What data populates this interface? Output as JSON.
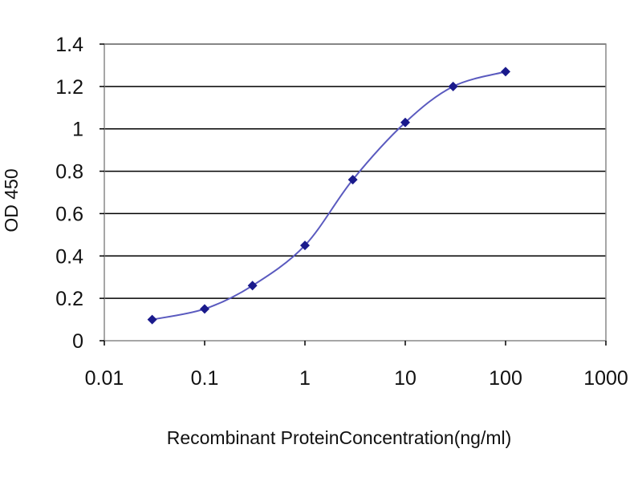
{
  "chart_data": {
    "type": "scatter",
    "xlabel": "Recombinant ProteinConcentration(ng/ml)",
    "ylabel": "OD 450",
    "x_scale": "log",
    "xlim": [
      0.01,
      1000
    ],
    "ylim": [
      0,
      1.4
    ],
    "x_ticks": [
      "0.01",
      "0.1",
      "1",
      "10",
      "100",
      "1000"
    ],
    "y_ticks": [
      "0",
      "0.2",
      "0.4",
      "0.6",
      "0.8",
      "1",
      "1.2",
      "1.4"
    ],
    "grid": "horizontal",
    "series": [
      {
        "x": [
          0.03,
          0.1,
          0.3,
          1,
          3,
          10,
          30,
          100
        ],
        "y": [
          0.1,
          0.15,
          0.26,
          0.45,
          0.76,
          1.03,
          1.2,
          1.27
        ]
      }
    ],
    "colors": {
      "series": "#1a1a8c",
      "line": "#5a5abf",
      "grid": "#000000",
      "frame": "#888888"
    }
  }
}
